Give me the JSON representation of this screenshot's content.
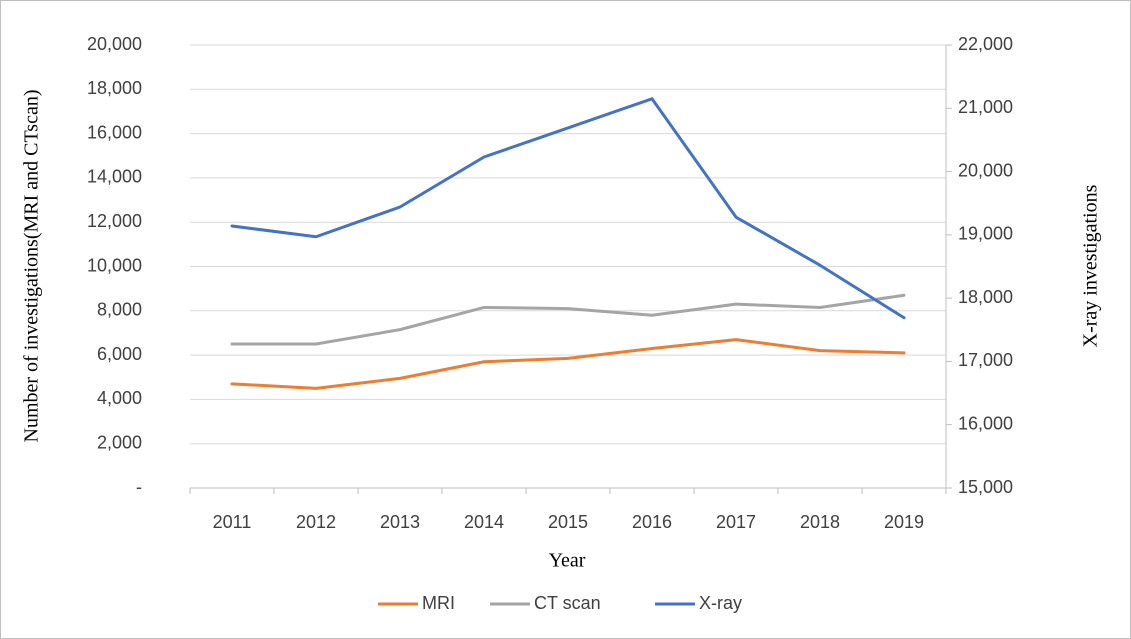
{
  "chart_data": {
    "type": "line",
    "x_label": "Year",
    "y_label": "Number of investigations(MRI and CTscan)",
    "y2_label": "X-ray investigations",
    "categories": [
      "2011",
      "2012",
      "2013",
      "2014",
      "2015",
      "2016",
      "2017",
      "2018",
      "2019"
    ],
    "series": [
      {
        "name": "MRI",
        "color": "#ed7d31",
        "values": [
          4700,
          4500,
          4950,
          5700,
          5850,
          6300,
          6700,
          6200,
          6100
        ]
      },
      {
        "name": "CT scan",
        "color": "#a5a5a5",
        "values": [
          6500,
          6500,
          7150,
          8150,
          8100,
          7800,
          8300,
          8150,
          8700
        ]
      },
      {
        "name": "X-ray",
        "color": "#4472c4",
        "axis": "y2",
        "values": [
          19140,
          18970,
          19440,
          20230,
          20690,
          21150,
          19280,
          18520,
          17690
        ]
      }
    ],
    "ylim": [
      0,
      20000
    ],
    "yticks": [
      {
        "value": 0,
        "label": "-"
      },
      {
        "value": 2000,
        "label": "2,000"
      },
      {
        "value": 4000,
        "label": "4,000"
      },
      {
        "value": 6000,
        "label": "6,000"
      },
      {
        "value": 8000,
        "label": "8,000"
      },
      {
        "value": 10000,
        "label": "10,000"
      },
      {
        "value": 12000,
        "label": "12,000"
      },
      {
        "value": 14000,
        "label": "14,000"
      },
      {
        "value": 16000,
        "label": "16,000"
      },
      {
        "value": 18000,
        "label": "18,000"
      },
      {
        "value": 20000,
        "label": "20,000"
      }
    ],
    "y2lim": [
      15000,
      22000
    ],
    "y2ticks": [
      {
        "value": 15000,
        "label": "15,000"
      },
      {
        "value": 16000,
        "label": "16,000"
      },
      {
        "value": 17000,
        "label": "17,000"
      },
      {
        "value": 18000,
        "label": "18,000"
      },
      {
        "value": 19000,
        "label": "19,000"
      },
      {
        "value": 20000,
        "label": "20,000"
      },
      {
        "value": 21000,
        "label": "21,000"
      },
      {
        "value": 22000,
        "label": "22,000"
      }
    ],
    "grid": true,
    "legend": "bottom"
  }
}
